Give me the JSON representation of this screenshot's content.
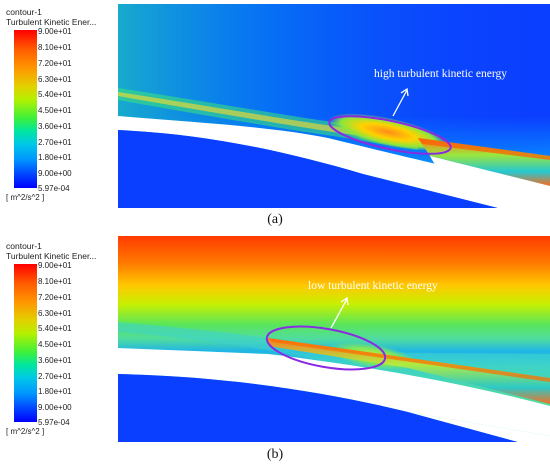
{
  "colormap": {
    "title_line1": "contour-1",
    "title_line2": "Turbulent Kinetic Ener...",
    "ticks": [
      "9.00e+01",
      "8.10e+01",
      "7.20e+01",
      "6.30e+01",
      "5.40e+01",
      "4.50e+01",
      "3.60e+01",
      "2.70e+01",
      "1.80e+01",
      "9.00e+00",
      "5.97e-04"
    ],
    "unit": "[ m^2/s^2 ]"
  },
  "panel_a": {
    "annotation": "high turbulent kinetic energy",
    "caption": "(a)"
  },
  "panel_b": {
    "annotation": "low turbulent kinetic energy",
    "caption": "(b)"
  },
  "colors": {
    "field_blue": "#0b3fff",
    "ellipse": "#8a2be2"
  }
}
